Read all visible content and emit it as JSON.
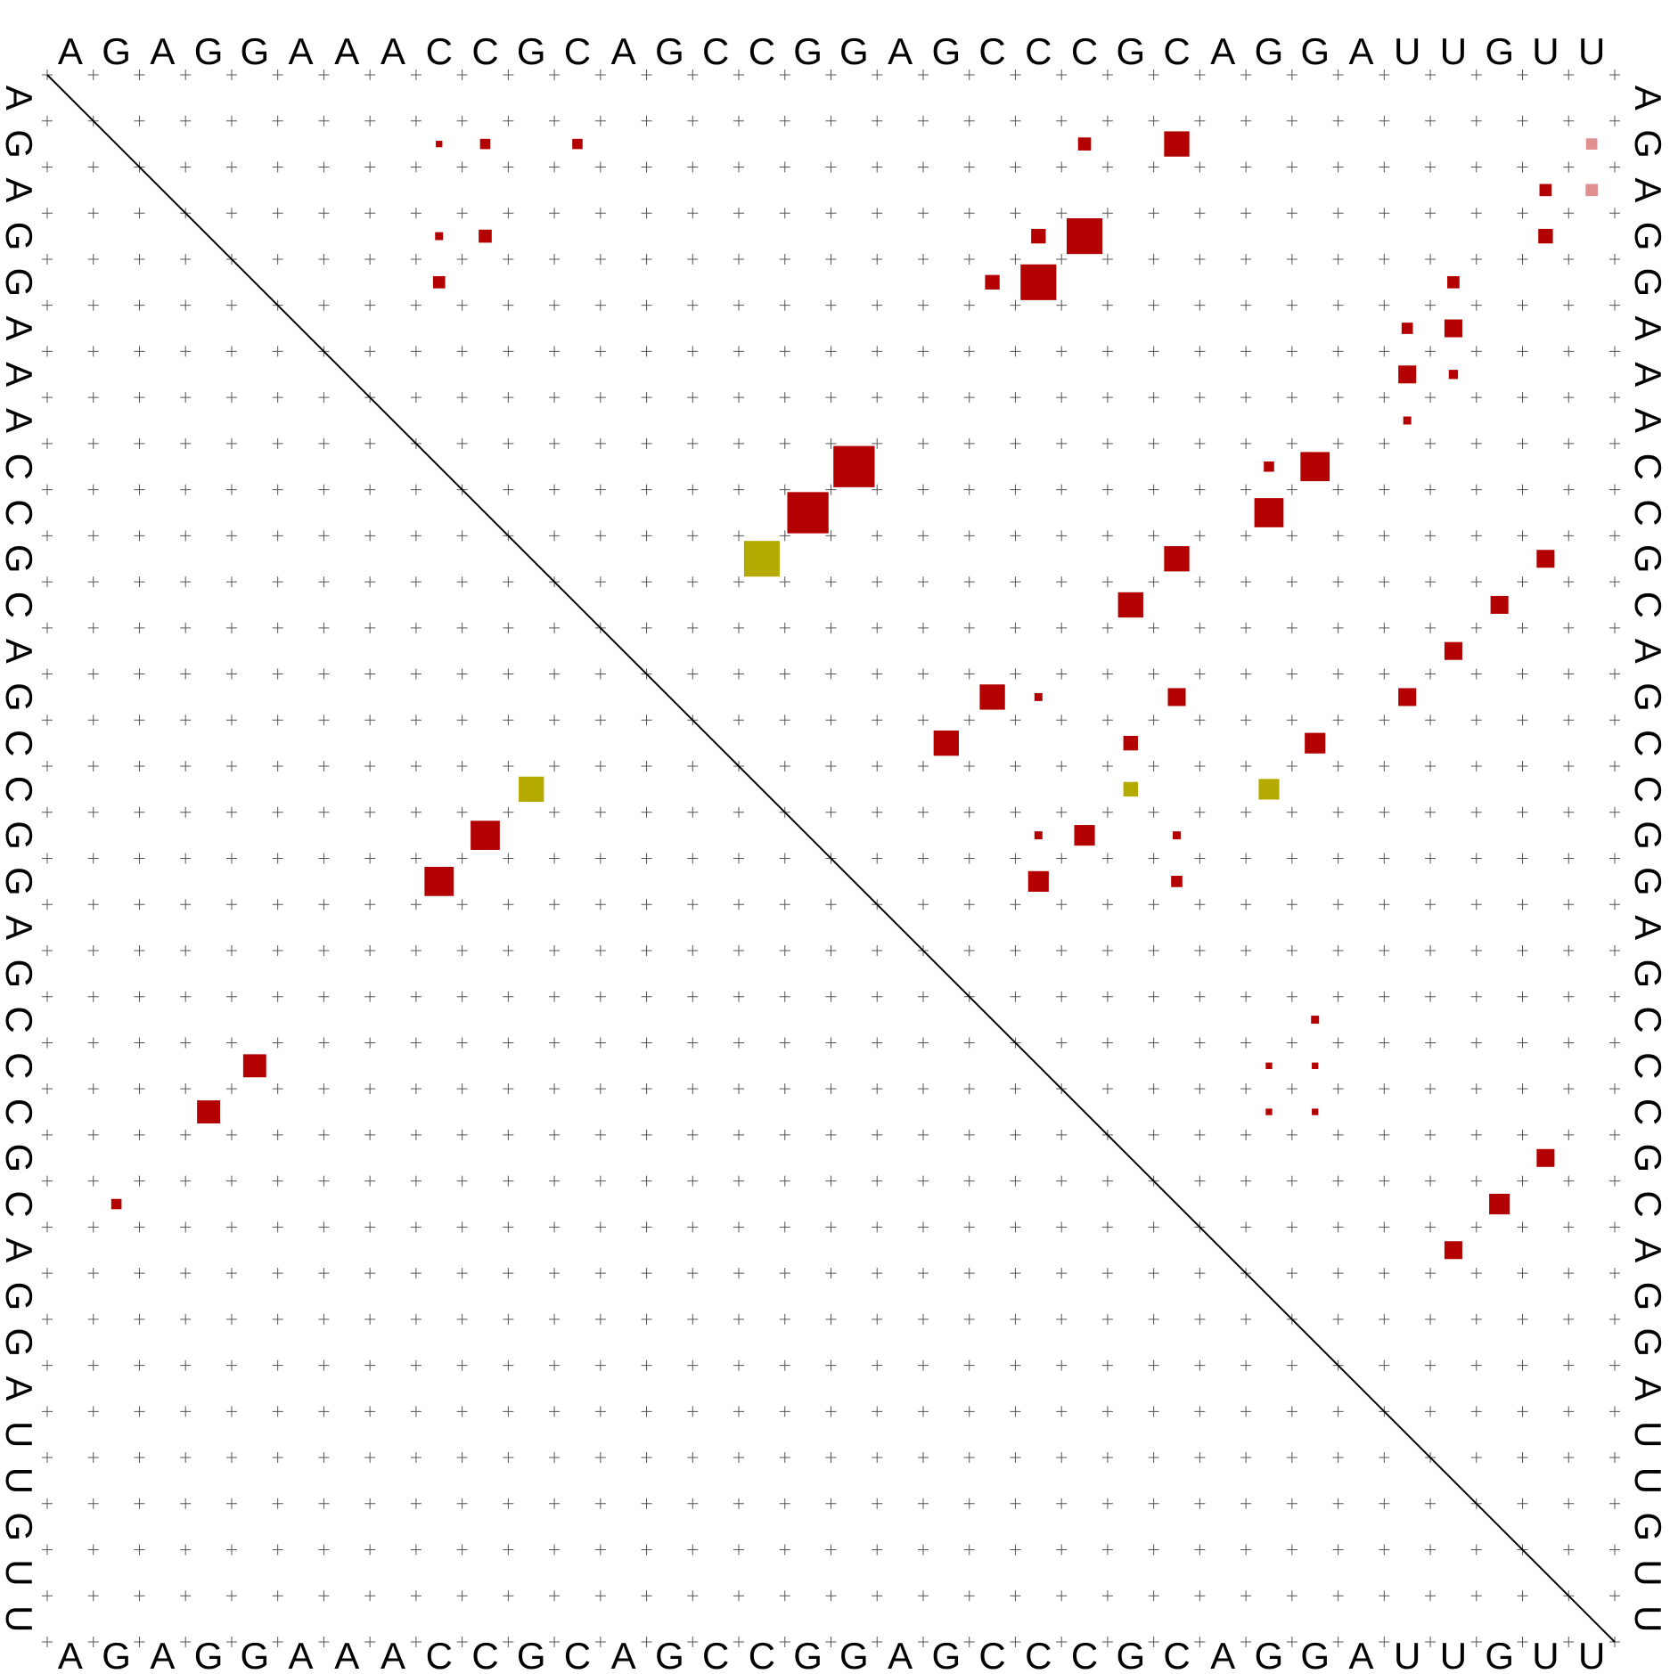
{
  "sequence": [
    "A",
    "G",
    "A",
    "G",
    "G",
    "A",
    "A",
    "A",
    "C",
    "C",
    "G",
    "C",
    "A",
    "G",
    "C",
    "C",
    "G",
    "G",
    "A",
    "G",
    "C",
    "C",
    "C",
    "G",
    "C",
    "A",
    "G",
    "G",
    "A",
    "U",
    "U",
    "G",
    "U",
    "U"
  ],
  "colors": {
    "pair": "#b30000",
    "pair_light": "#e09090",
    "gold": "#b5aa00",
    "grid": "#555555",
    "diagonal": "#000000"
  },
  "chart_data": {
    "type": "heatmap",
    "description_of_encoding": "dot plot: square area ~ pair probability",
    "upper_triangle": [
      {
        "row": 2,
        "col": 9,
        "p": 0.02
      },
      {
        "row": 2,
        "col": 10,
        "p": 0.05
      },
      {
        "row": 2,
        "col": 12,
        "p": 0.05
      },
      {
        "row": 2,
        "col": 23,
        "p": 0.08
      },
      {
        "row": 2,
        "col": 25,
        "p": 0.3
      },
      {
        "row": 2,
        "col": 34,
        "p": 0.06,
        "light": true
      },
      {
        "row": 3,
        "col": 33,
        "p": 0.07
      },
      {
        "row": 3,
        "col": 34,
        "p": 0.07,
        "light": true
      },
      {
        "row": 4,
        "col": 9,
        "p": 0.03
      },
      {
        "row": 4,
        "col": 10,
        "p": 0.08
      },
      {
        "row": 4,
        "col": 22,
        "p": 0.1
      },
      {
        "row": 4,
        "col": 23,
        "p": 0.6
      },
      {
        "row": 4,
        "col": 33,
        "p": 0.1
      },
      {
        "row": 5,
        "col": 9,
        "p": 0.07
      },
      {
        "row": 5,
        "col": 21,
        "p": 0.1
      },
      {
        "row": 5,
        "col": 22,
        "p": 0.6
      },
      {
        "row": 5,
        "col": 31,
        "p": 0.07
      },
      {
        "row": 6,
        "col": 30,
        "p": 0.06
      },
      {
        "row": 6,
        "col": 31,
        "p": 0.15
      },
      {
        "row": 7,
        "col": 30,
        "p": 0.15
      },
      {
        "row": 7,
        "col": 31,
        "p": 0.04
      },
      {
        "row": 8,
        "col": 30,
        "p": 0.03
      },
      {
        "row": 9,
        "col": 18,
        "p": 0.8
      },
      {
        "row": 9,
        "col": 27,
        "p": 0.05
      },
      {
        "row": 9,
        "col": 28,
        "p": 0.4
      },
      {
        "row": 10,
        "col": 17,
        "p": 0.8
      },
      {
        "row": 10,
        "col": 27,
        "p": 0.4
      },
      {
        "row": 11,
        "col": 16,
        "p": 0.6,
        "gold": true
      },
      {
        "row": 11,
        "col": 25,
        "p": 0.3
      },
      {
        "row": 11,
        "col": 33,
        "p": 0.15
      },
      {
        "row": 12,
        "col": 24,
        "p": 0.3
      },
      {
        "row": 12,
        "col": 32,
        "p": 0.15
      },
      {
        "row": 13,
        "col": 31,
        "p": 0.15
      },
      {
        "row": 14,
        "col": 21,
        "p": 0.3
      },
      {
        "row": 14,
        "col": 22,
        "p": 0.03
      },
      {
        "row": 14,
        "col": 25,
        "p": 0.15
      },
      {
        "row": 14,
        "col": 30,
        "p": 0.15
      },
      {
        "row": 15,
        "col": 20,
        "p": 0.3
      },
      {
        "row": 15,
        "col": 24,
        "p": 0.1
      },
      {
        "row": 15,
        "col": 28,
        "p": 0.2
      },
      {
        "row": 16,
        "col": 24,
        "p": 0.1,
        "gold": true
      },
      {
        "row": 16,
        "col": 27,
        "p": 0.2,
        "gold": true
      },
      {
        "row": 17,
        "col": 22,
        "p": 0.03
      },
      {
        "row": 17,
        "col": 23,
        "p": 0.2
      },
      {
        "row": 17,
        "col": 25,
        "p": 0.03
      },
      {
        "row": 18,
        "col": 22,
        "p": 0.2
      },
      {
        "row": 18,
        "col": 25,
        "p": 0.06
      },
      {
        "row": 21,
        "col": 28,
        "p": 0.03
      },
      {
        "row": 22,
        "col": 27,
        "p": 0.02
      },
      {
        "row": 22,
        "col": 28,
        "p": 0.02
      },
      {
        "row": 23,
        "col": 27,
        "p": 0.02
      },
      {
        "row": 23,
        "col": 28,
        "p": 0.02
      },
      {
        "row": 24,
        "col": 33,
        "p": 0.15
      },
      {
        "row": 25,
        "col": 32,
        "p": 0.2
      },
      {
        "row": 26,
        "col": 31,
        "p": 0.15
      }
    ],
    "lower_triangle": [
      {
        "row": 16,
        "col": 11,
        "p": 0.3,
        "gold": true
      },
      {
        "row": 17,
        "col": 10,
        "p": 0.4
      },
      {
        "row": 18,
        "col": 9,
        "p": 0.4
      },
      {
        "row": 22,
        "col": 5,
        "p": 0.25
      },
      {
        "row": 23,
        "col": 4,
        "p": 0.25
      },
      {
        "row": 25,
        "col": 2,
        "p": 0.05
      }
    ]
  }
}
